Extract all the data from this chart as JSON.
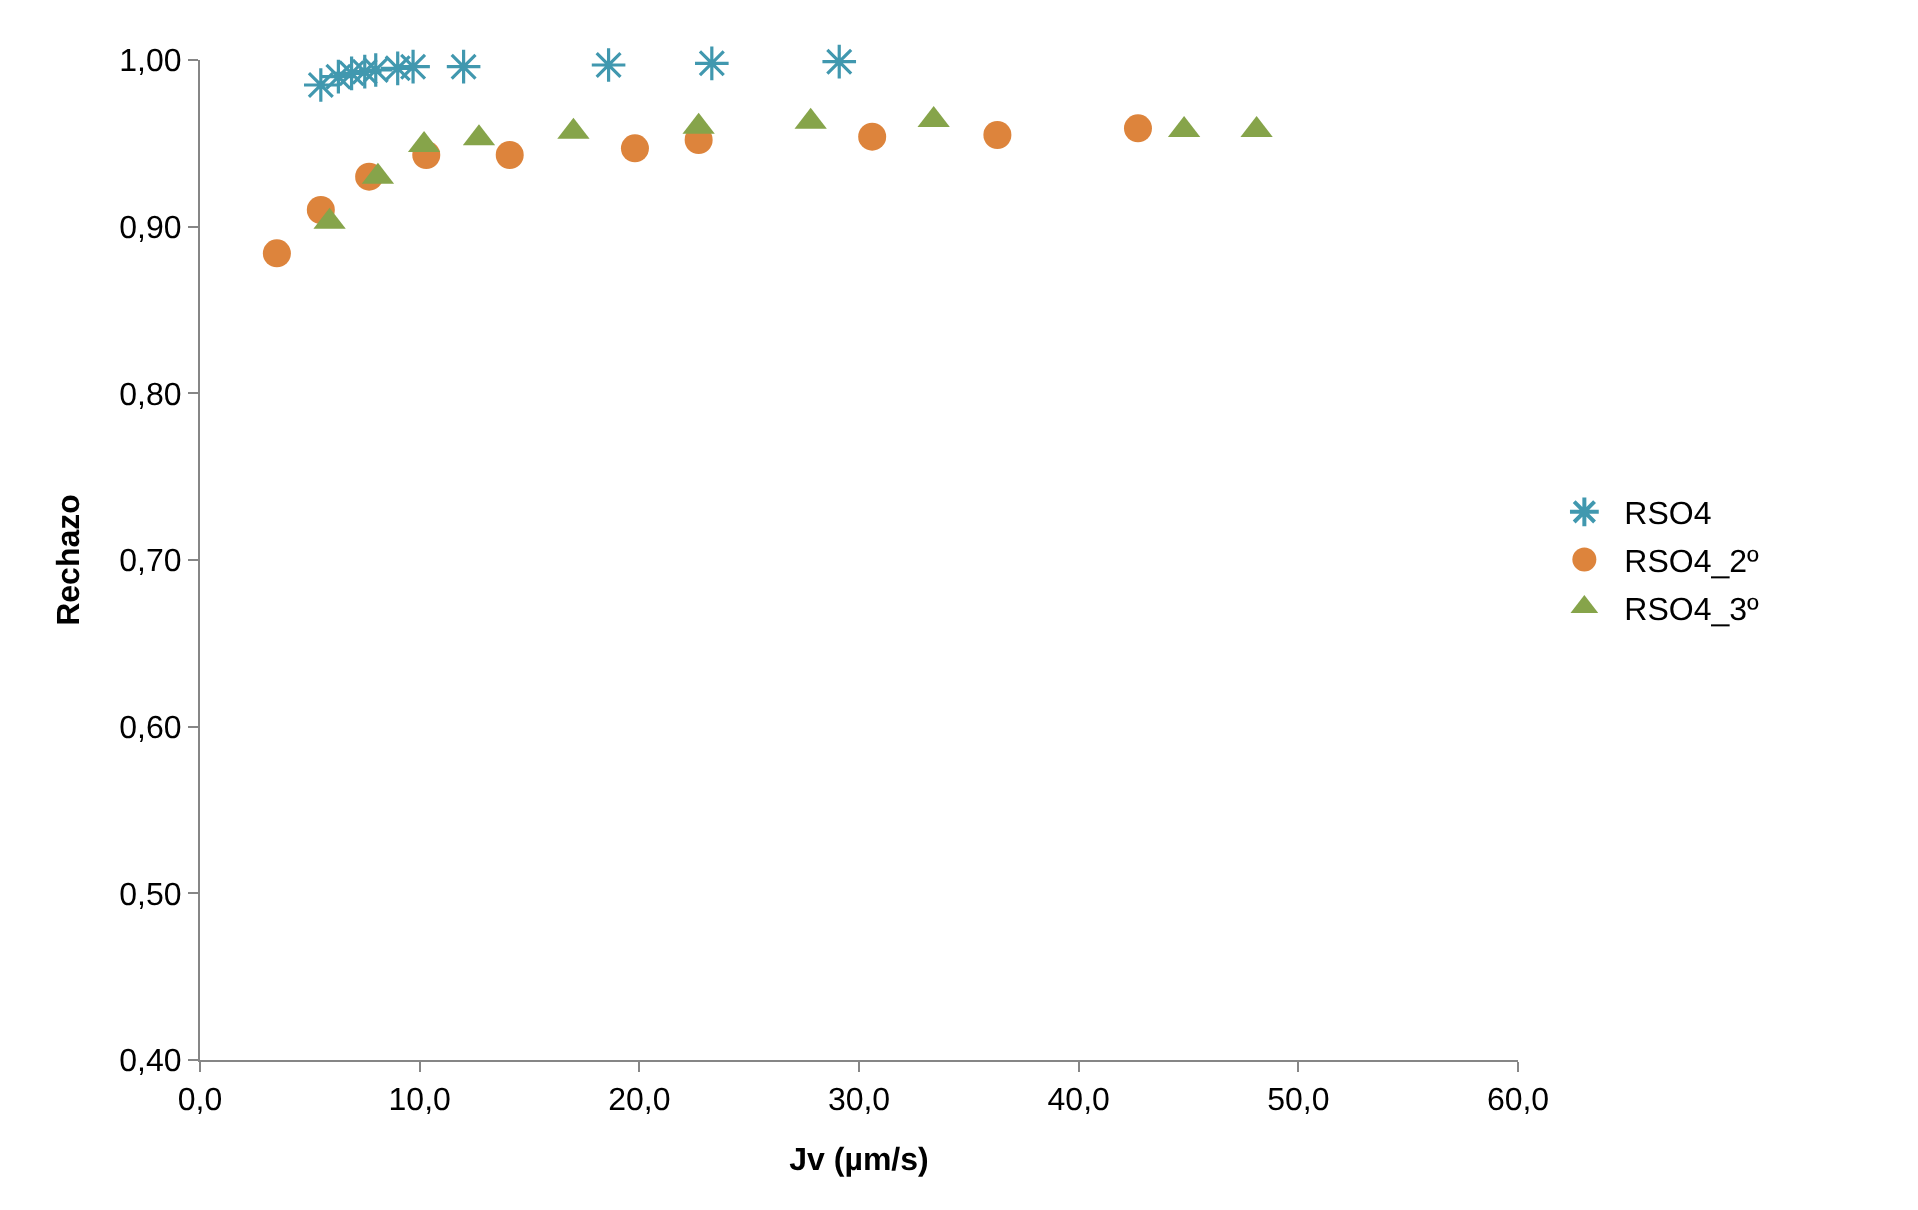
{
  "chart_data": {
    "type": "scatter",
    "xlabel": "Jv (µm/s)",
    "ylabel": "Rechazo",
    "xlim": [
      0,
      60
    ],
    "ylim": [
      0.4,
      1.0
    ],
    "xticks": [
      {
        "value": 0,
        "label": "0,0"
      },
      {
        "value": 10,
        "label": "10,0"
      },
      {
        "value": 20,
        "label": "20,0"
      },
      {
        "value": 30,
        "label": "30,0"
      },
      {
        "value": 40,
        "label": "40,0"
      },
      {
        "value": 50,
        "label": "50,0"
      },
      {
        "value": 60,
        "label": "60,0"
      }
    ],
    "yticks": [
      {
        "value": 0.4,
        "label": "0,40"
      },
      {
        "value": 0.5,
        "label": "0,50"
      },
      {
        "value": 0.6,
        "label": "0,60"
      },
      {
        "value": 0.7,
        "label": "0,70"
      },
      {
        "value": 0.8,
        "label": "0,80"
      },
      {
        "value": 0.9,
        "label": "0,90"
      },
      {
        "value": 1.0,
        "label": "1,00"
      }
    ],
    "legend": "right",
    "series": [
      {
        "name": "RSO4",
        "color": "#4198af",
        "marker": "cross",
        "x": [
          5.5,
          6.3,
          6.9,
          7.5,
          8.0,
          9.0,
          9.7,
          12.0,
          18.6,
          23.3,
          29.1
        ],
        "values": [
          0.985,
          0.99,
          0.992,
          0.993,
          0.994,
          0.995,
          0.996,
          0.996,
          0.997,
          0.998,
          0.999
        ]
      },
      {
        "name": "RSO4_2º",
        "color": "#dd843c",
        "marker": "circle",
        "x": [
          3.5,
          5.5,
          7.7,
          10.3,
          14.1,
          19.8,
          22.7,
          30.6,
          36.3,
          42.7
        ],
        "values": [
          0.884,
          0.91,
          0.93,
          0.943,
          0.943,
          0.947,
          0.952,
          0.954,
          0.955,
          0.959
        ]
      },
      {
        "name": "RSO4_3º",
        "color": "#86a44a",
        "marker": "triangle",
        "x": [
          5.9,
          8.1,
          10.2,
          12.7,
          17.0,
          22.7,
          27.8,
          33.4,
          44.8,
          48.1
        ],
        "values": [
          0.903,
          0.93,
          0.949,
          0.953,
          0.957,
          0.96,
          0.963,
          0.964,
          0.958,
          0.958
        ]
      }
    ]
  }
}
